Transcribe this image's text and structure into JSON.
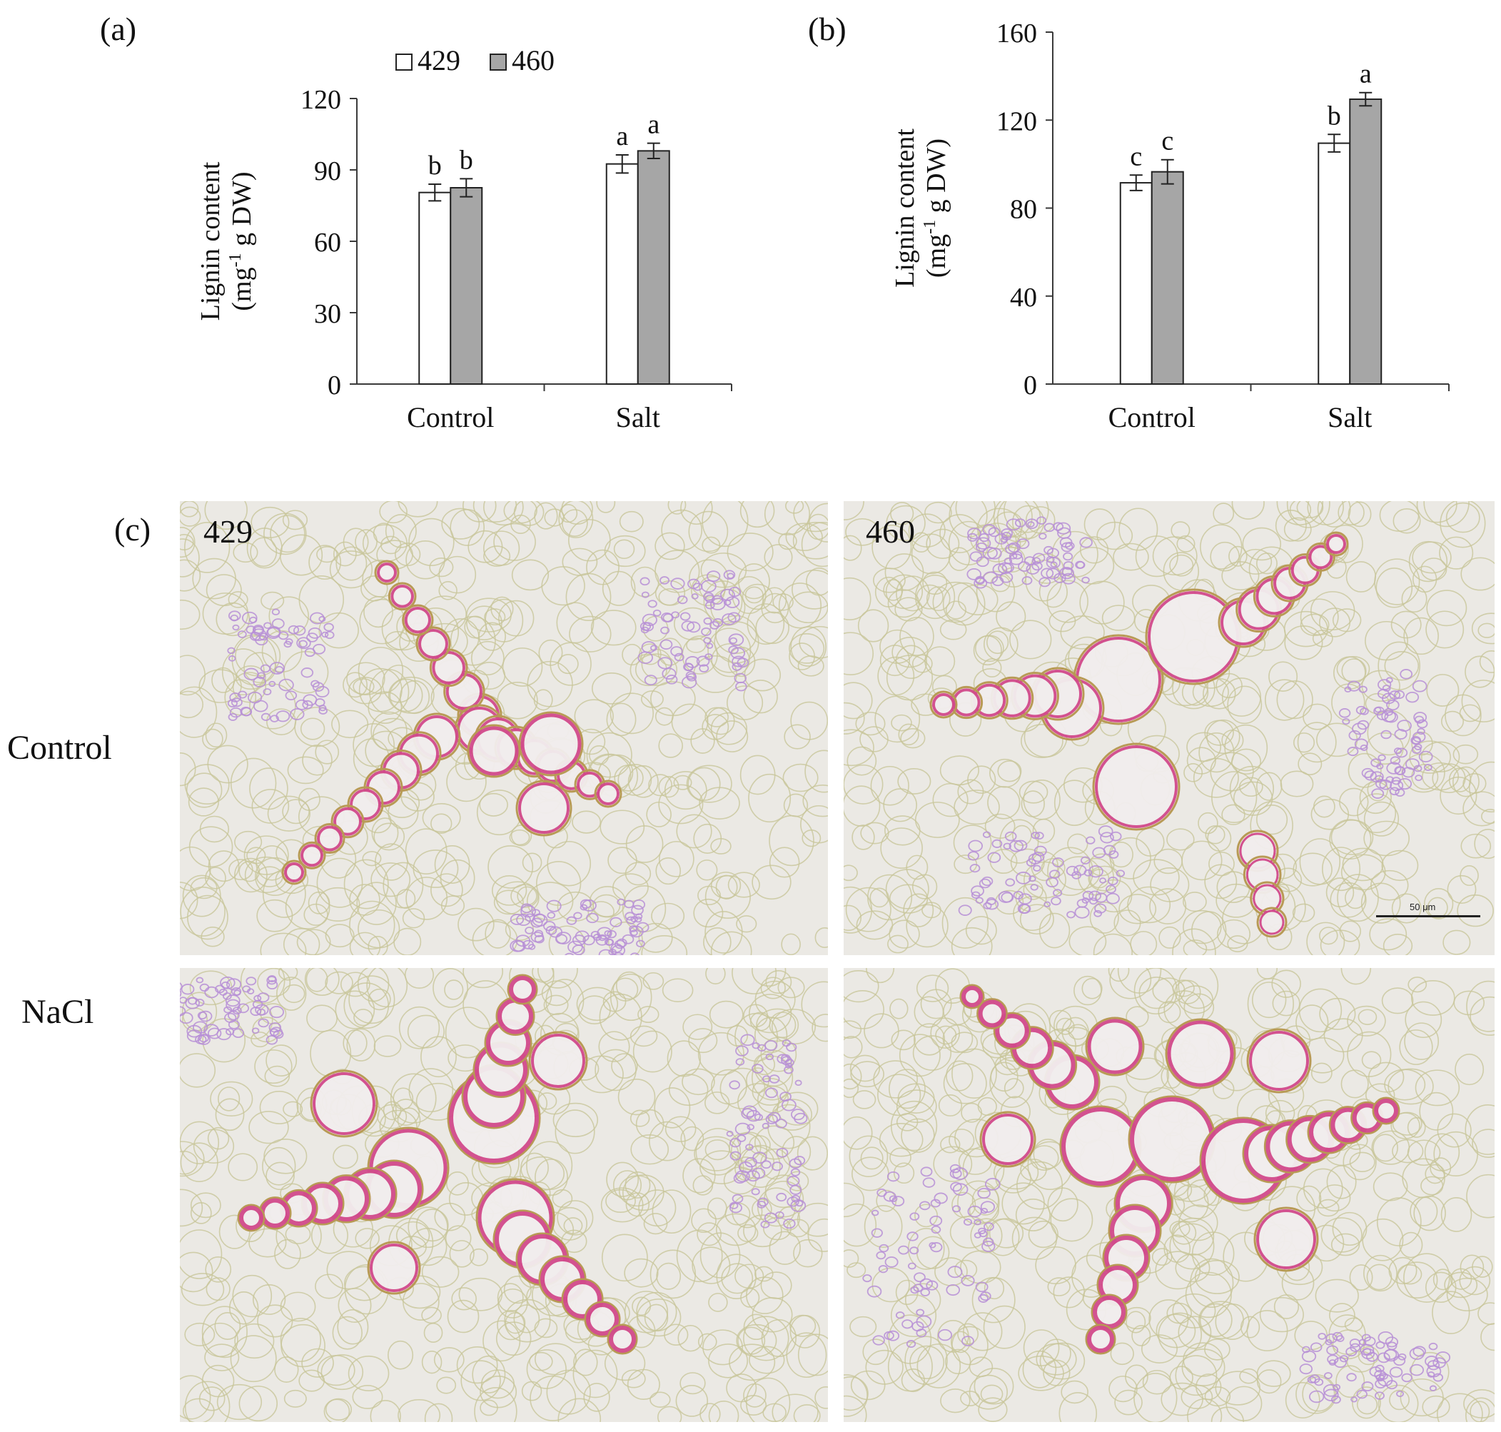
{
  "colors": {
    "bar_429": "#ffffff",
    "bar_460": "#a6a6a6",
    "tissue_bg": "#ebe9e4",
    "cell_wall": "#c8c69a",
    "lignin": "#d24a8c",
    "phloem": "#b78fd6"
  },
  "panel_a": {
    "letter": "(a)",
    "legend": [
      "429",
      "460"
    ],
    "chart_data": {
      "type": "bar",
      "categories": [
        "Control",
        "Salt"
      ],
      "series": [
        {
          "name": "429",
          "values": [
            80.5,
            92.5
          ],
          "errors": [
            3.5,
            3.8
          ],
          "letters": [
            "b",
            "a"
          ]
        },
        {
          "name": "460",
          "values": [
            82.5,
            98.0
          ],
          "errors": [
            3.8,
            3.2
          ],
          "letters": [
            "b",
            "a"
          ]
        }
      ],
      "ylabel_line1": "Lignin content",
      "ylabel_line2_pre": "(mg",
      "ylabel_sup": "-1",
      "ylabel_line2_post": " g DW)",
      "ylim": [
        0,
        120
      ],
      "yticks": [
        0,
        30,
        60,
        90,
        120
      ]
    }
  },
  "panel_b": {
    "letter": "(b)",
    "chart_data": {
      "type": "bar",
      "categories": [
        "Control",
        "Salt"
      ],
      "series": [
        {
          "name": "429",
          "values": [
            91.5,
            109.5
          ],
          "errors": [
            3.5,
            4.0
          ],
          "letters": [
            "c",
            "b"
          ]
        },
        {
          "name": "460",
          "values": [
            96.5,
            129.5
          ],
          "errors": [
            5.5,
            3.0
          ],
          "letters": [
            "c",
            "a"
          ]
        }
      ],
      "ylabel_line1": "Lignin content",
      "ylabel_line2_pre": "(mg",
      "ylabel_sup": "-1",
      "ylabel_line2_post": " g DW)",
      "ylim": [
        0,
        160
      ],
      "yticks": [
        0,
        40,
        80,
        120,
        160
      ]
    }
  },
  "panel_c": {
    "letter": "(c)",
    "rows": [
      "Control",
      "NaCl"
    ],
    "columns": [
      "429",
      "460"
    ],
    "scale_bar": "50 μm"
  }
}
